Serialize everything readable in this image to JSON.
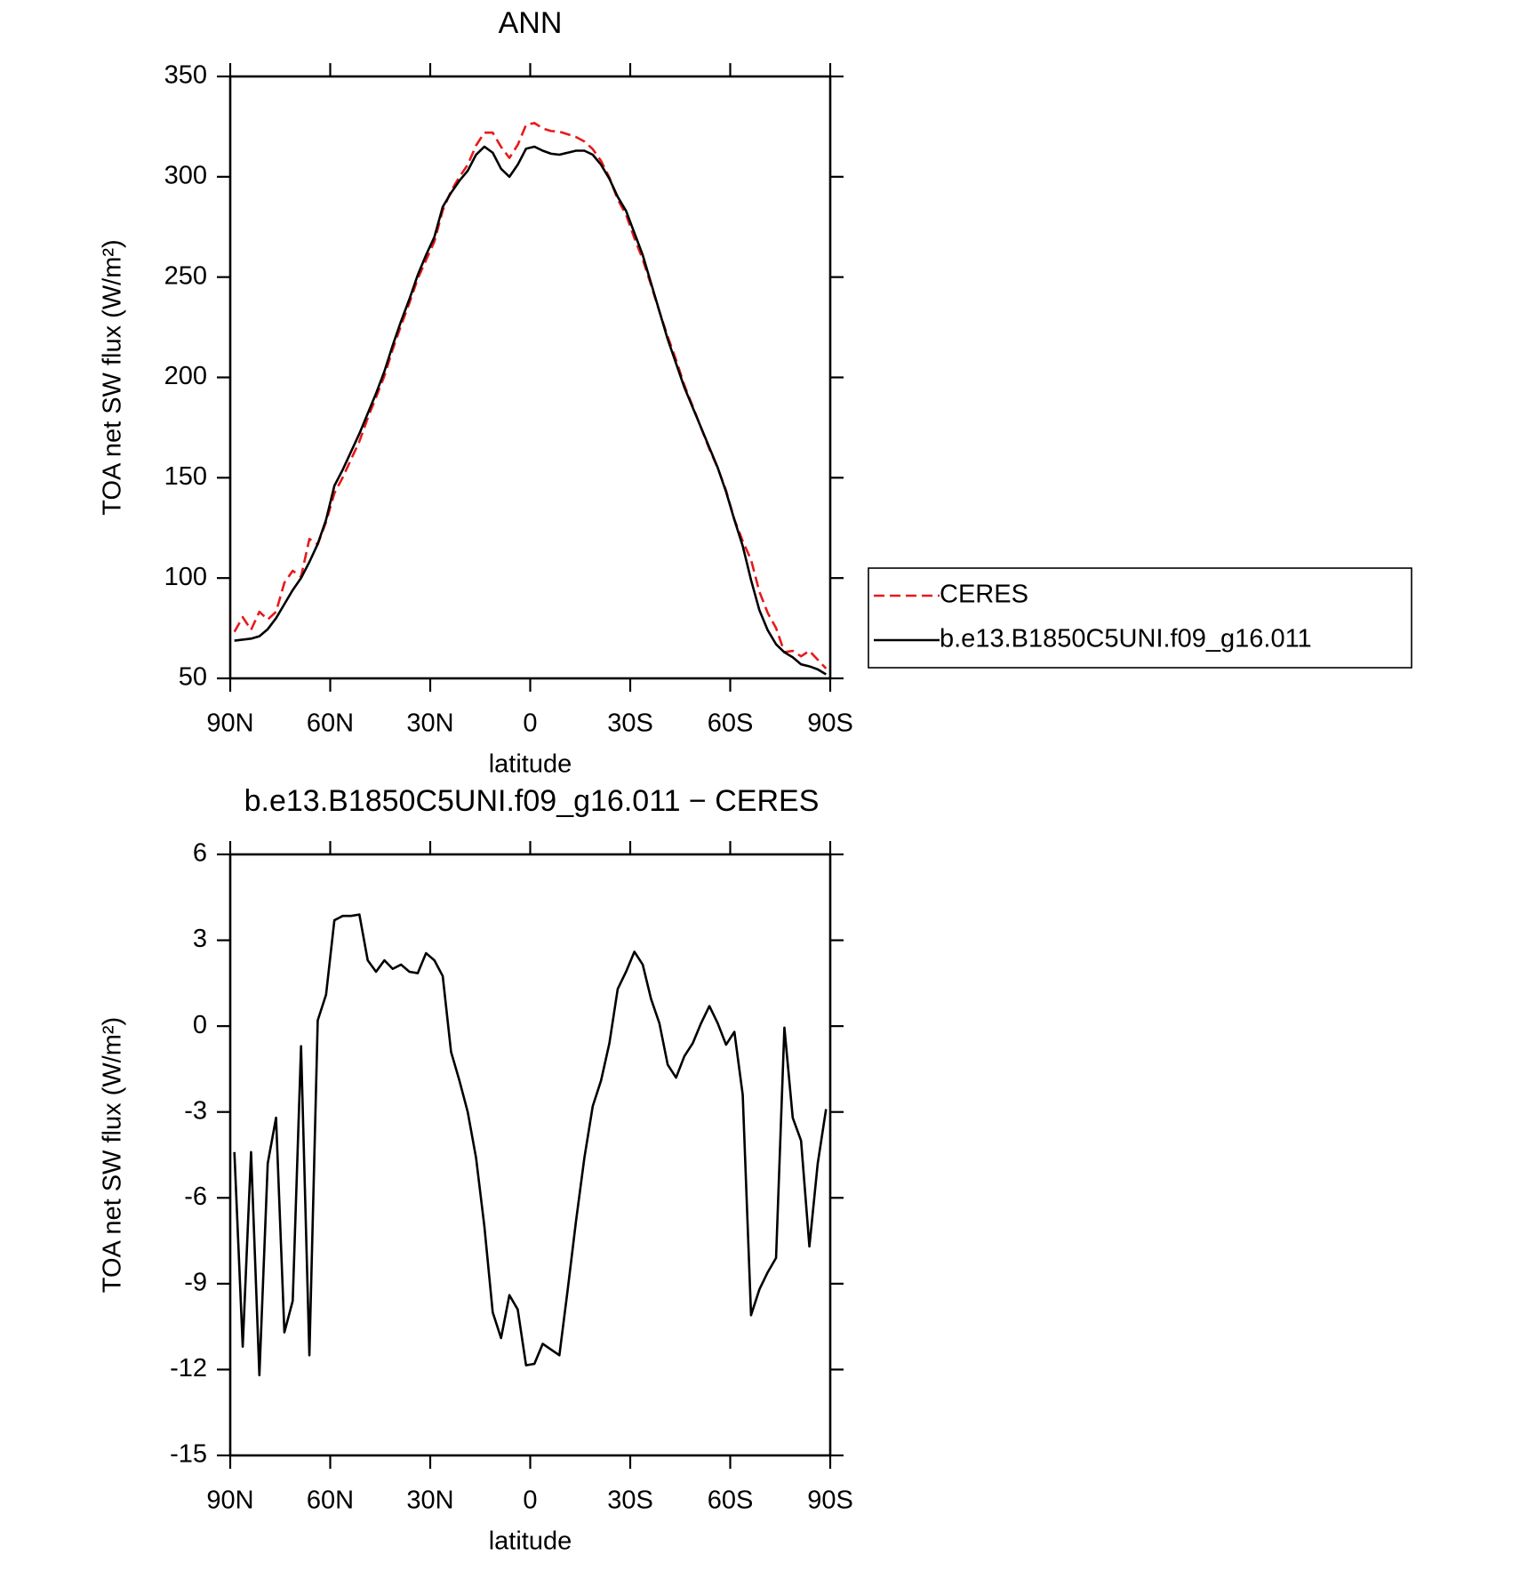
{
  "chart_data": [
    {
      "type": "line",
      "title": "ANN",
      "xlabel": "latitude",
      "ylabel": "TOA net SW flux (W/m²)",
      "x": [
        88.75,
        86.25,
        83.75,
        81.25,
        78.75,
        76.25,
        73.75,
        71.25,
        68.75,
        66.25,
        63.75,
        61.25,
        58.75,
        56.25,
        53.75,
        51.25,
        48.75,
        46.25,
        43.75,
        41.25,
        38.75,
        36.25,
        33.75,
        31.25,
        28.75,
        26.25,
        23.75,
        21.25,
        18.75,
        16.25,
        13.75,
        11.25,
        8.75,
        6.25,
        3.75,
        1.25,
        -1.25,
        -3.75,
        -6.25,
        -8.75,
        -11.25,
        -13.75,
        -16.25,
        -18.75,
        -21.25,
        -23.75,
        -26.25,
        -28.75,
        -31.25,
        -33.75,
        -36.25,
        -38.75,
        -41.25,
        -43.75,
        -46.25,
        -48.75,
        -51.25,
        -53.75,
        -56.25,
        -58.75,
        -61.25,
        -63.75,
        -66.25,
        -68.75,
        -71.25,
        -73.75,
        -76.25,
        -78.75,
        -81.25,
        -83.75,
        -86.25,
        -88.75
      ],
      "series": [
        {
          "name": "CERES",
          "color": "#e8191b",
          "dashed": true,
          "values": [
            73.2,
            80.5,
            74.2,
            83.2,
            79.3,
            83.2,
            97.7,
            103.6,
            100.7,
            119.5,
            116.8,
            127.9,
            142.3,
            150.15,
            159.15,
            168.1,
            179.7,
            190.1,
            200.7,
            214,
            225.85,
            237.1,
            249.15,
            258.45,
            267.7,
            283.25,
            292.9,
            299.9,
            306,
            315.6,
            322,
            322,
            314.9,
            309.4,
            315.9,
            325.85,
            326.8,
            324.1,
            322.8,
            322.5,
            321.2,
            319.8,
            317.6,
            313.8,
            307.9,
            299.6,
            288.7,
            281.1,
            269.4,
            258.85,
            246.05,
            232.9,
            220.35,
            208.8,
            196.05,
            185.6,
            174.9,
            164.3,
            154.9,
            143.65,
            129.2,
            118.4,
            109.1,
            93.2,
            82.6,
            75.1,
            63.05,
            63.7,
            61,
            63.7,
            59.3,
            54.9
          ]
        },
        {
          "name": "b.e13.B1850C5UNI.f09_g16.011",
          "color": "#000000",
          "dashed": false,
          "values": [
            68.8,
            69.3,
            69.8,
            71,
            74.5,
            80,
            87,
            94,
            100,
            108,
            117,
            129,
            146,
            154,
            163,
            172,
            182,
            192,
            203,
            216,
            228,
            239,
            251,
            261,
            270,
            285,
            292,
            298,
            303,
            311,
            315,
            312,
            304,
            300,
            306,
            314,
            315,
            313,
            311.5,
            311,
            312,
            313,
            313,
            311,
            306,
            299,
            290,
            283,
            272,
            261,
            247,
            233,
            219,
            207,
            195,
            185,
            175,
            165,
            155,
            143,
            129,
            116,
            99,
            84,
            74,
            67,
            63,
            60.5,
            57,
            56,
            54.5,
            52
          ]
        }
      ],
      "xlim": [
        90,
        -90
      ],
      "xticks": [
        {
          "value": 90,
          "label": "90N"
        },
        {
          "value": 60,
          "label": "60N"
        },
        {
          "value": 30,
          "label": "30N"
        },
        0,
        {
          "value": -30,
          "label": "30S"
        },
        {
          "value": -60,
          "label": "60S"
        },
        {
          "value": -90,
          "label": "90S"
        }
      ],
      "ylim": [
        50,
        350
      ],
      "yticks": [
        50,
        100,
        150,
        200,
        250,
        300,
        350
      ],
      "legend": "right"
    },
    {
      "type": "line",
      "title": "b.e13.B1850C5UNI.f09_g16.011 − CERES",
      "xlabel": "latitude",
      "ylabel": "TOA net SW flux (W/m²)",
      "x": [
        88.75,
        86.25,
        83.75,
        81.25,
        78.75,
        76.25,
        73.75,
        71.25,
        68.75,
        66.25,
        63.75,
        61.25,
        58.75,
        56.25,
        53.75,
        51.25,
        48.75,
        46.25,
        43.75,
        41.25,
        38.75,
        36.25,
        33.75,
        31.25,
        28.75,
        26.25,
        23.75,
        21.25,
        18.75,
        16.25,
        13.75,
        11.25,
        8.75,
        6.25,
        3.75,
        1.25,
        -1.25,
        -3.75,
        -6.25,
        -8.75,
        -11.25,
        -13.75,
        -16.25,
        -18.75,
        -21.25,
        -23.75,
        -26.25,
        -28.75,
        -31.25,
        -33.75,
        -36.25,
        -38.75,
        -41.25,
        -43.75,
        -46.25,
        -48.75,
        -51.25,
        -53.75,
        -56.25,
        -58.75,
        -61.25,
        -63.75,
        -66.25,
        -68.75,
        -71.25,
        -73.75,
        -76.25,
        -78.75,
        -81.25,
        -83.75,
        -86.25,
        -88.75
      ],
      "values": [
        -4.4,
        -11.2,
        -4.4,
        -12.2,
        -4.8,
        -3.2,
        -10.7,
        -9.6,
        -0.7,
        -11.5,
        0.2,
        1.1,
        3.7,
        3.85,
        3.85,
        3.9,
        2.3,
        1.9,
        2.3,
        2.0,
        2.15,
        1.9,
        1.85,
        2.55,
        2.3,
        1.75,
        -0.9,
        -1.9,
        -3.0,
        -4.6,
        -7.0,
        -10.0,
        -10.9,
        -9.4,
        -9.9,
        -11.85,
        -11.8,
        -11.1,
        -11.3,
        -11.5,
        -9.2,
        -6.8,
        -4.6,
        -2.8,
        -1.9,
        -0.6,
        1.3,
        1.9,
        2.6,
        2.15,
        0.95,
        0.1,
        -1.35,
        -1.8,
        -1.05,
        -0.6,
        0.1,
        0.7,
        0.1,
        -0.65,
        -0.2,
        -2.4,
        -10.1,
        -9.2,
        -8.6,
        -8.1,
        -0.05,
        -3.2,
        -4.0,
        -7.7,
        -4.8,
        -2.9
      ],
      "color": "#000000",
      "xlim": [
        90,
        -90
      ],
      "xticks": [
        {
          "value": 90,
          "label": "90N"
        },
        {
          "value": 60,
          "label": "60N"
        },
        {
          "value": 30,
          "label": "30N"
        },
        0,
        {
          "value": -30,
          "label": "30S"
        },
        {
          "value": -60,
          "label": "60S"
        },
        {
          "value": -90,
          "label": "90S"
        }
      ],
      "ylim": [
        -15,
        6
      ],
      "yticks": [
        -15,
        -12,
        -9,
        -6,
        -3,
        0,
        3,
        6
      ]
    }
  ]
}
